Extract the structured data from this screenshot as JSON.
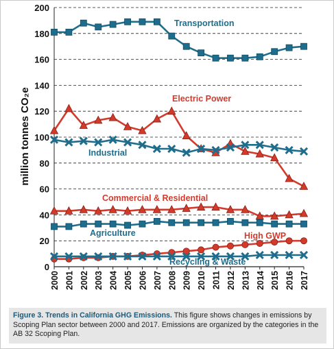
{
  "chart_data": {
    "type": "line",
    "x": [
      2000,
      2001,
      2002,
      2003,
      2004,
      2005,
      2006,
      2007,
      2008,
      2009,
      2010,
      2011,
      2012,
      2013,
      2014,
      2015,
      2016,
      2017
    ],
    "ylabel": "million tonnes CO₂e",
    "ylim": [
      0,
      200
    ],
    "yticks": [
      0,
      20,
      40,
      60,
      80,
      100,
      120,
      140,
      160,
      180,
      200
    ],
    "grid": "horizontal dashed",
    "series": [
      {
        "name": "Transportation",
        "color": "#1f6d8c",
        "marker": "square",
        "values": [
          181,
          181,
          188,
          185,
          187,
          189,
          189,
          189,
          178,
          170,
          165,
          161,
          161,
          161,
          162,
          166,
          169,
          170
        ]
      },
      {
        "name": "Electric Power",
        "color": "#d23b2c",
        "marker": "triangle",
        "values": [
          105,
          122,
          109,
          113,
          115,
          108,
          105,
          114,
          120,
          101,
          91,
          88,
          95,
          89,
          87,
          84,
          68,
          62
        ]
      },
      {
        "name": "Industrial",
        "color": "#1f6d8c",
        "marker": "x",
        "values": [
          98,
          96,
          97,
          96,
          98,
          96,
          94,
          91,
          91,
          88,
          91,
          90,
          92,
          94,
          94,
          92,
          90,
          89
        ]
      },
      {
        "name": "Commercial & Residential",
        "color": "#d23b2c",
        "marker": "triangle",
        "values": [
          43,
          43,
          44,
          43,
          44,
          43,
          44,
          44,
          44,
          45,
          46,
          46,
          44,
          44,
          39,
          39,
          40,
          41
        ]
      },
      {
        "name": "Agriculture",
        "color": "#1f6d8c",
        "marker": "square",
        "values": [
          31,
          31,
          33,
          33,
          33,
          32,
          33,
          35,
          34,
          34,
          34,
          34,
          35,
          34,
          34,
          33,
          33,
          33
        ]
      },
      {
        "name": "High GWP",
        "color": "#d23b2c",
        "marker": "circle",
        "values": [
          6,
          6,
          7,
          7,
          8,
          8,
          9,
          10,
          11,
          12,
          13,
          15,
          16,
          17,
          18,
          19,
          20,
          20
        ]
      },
      {
        "name": "Recycling & Waste",
        "color": "#1f6d8c",
        "marker": "x",
        "values": [
          8,
          8,
          8,
          8,
          8,
          8,
          8,
          8,
          8,
          8,
          8,
          8,
          8,
          8,
          9,
          9,
          9,
          9
        ]
      }
    ],
    "labels": [
      {
        "series": "Transportation",
        "text": "Transportation",
        "color": "#1f6d8c"
      },
      {
        "series": "Electric Power",
        "text": "Electric Power",
        "color": "#d23b2c"
      },
      {
        "series": "Industrial",
        "text": "Industrial",
        "color": "#1f6d8c"
      },
      {
        "series": "Commercial & Residential",
        "text": "Commercial & Residential",
        "color": "#d23b2c"
      },
      {
        "series": "Agriculture",
        "text": "Agriculture",
        "color": "#1f6d8c"
      },
      {
        "series": "High GWP",
        "text": "High GWP",
        "color": "#d23b2c"
      },
      {
        "series": "Recycling & Waste",
        "text": "Recycling & Waste",
        "color": "#1f6d8c"
      }
    ]
  },
  "caption": {
    "lead": "Figure 3. Trends in California GHG Emissions.",
    "body": "This figure shows changes in emissions by Scoping Plan sector between 2000 and 2017. Emissions are organized by the categories in the AB 32 Scoping Plan."
  }
}
